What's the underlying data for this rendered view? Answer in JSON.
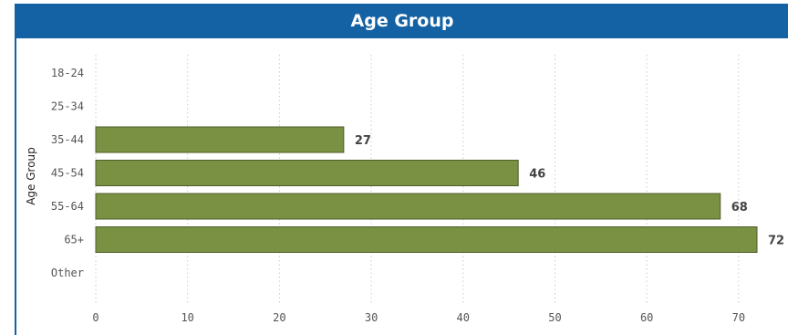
{
  "chart_data": {
    "type": "bar",
    "orientation": "horizontal",
    "title": "Age Group",
    "xlabel": "",
    "ylabel": "Age Group",
    "categories": [
      "18-24",
      "25-34",
      "35-44",
      "45-54",
      "55-64",
      "65+",
      "Other"
    ],
    "values": [
      null,
      null,
      27,
      46,
      68,
      72,
      null
    ],
    "xlim": [
      0,
      72
    ],
    "xticks": [
      0,
      10,
      20,
      30,
      40,
      50,
      60,
      70
    ],
    "grid": "vertical-dotted",
    "data_labels": true,
    "colors": {
      "bar": "#7a9143",
      "bar_border": "#4e5e2a",
      "header": "#1462a4",
      "grid": "#cccccc"
    }
  }
}
